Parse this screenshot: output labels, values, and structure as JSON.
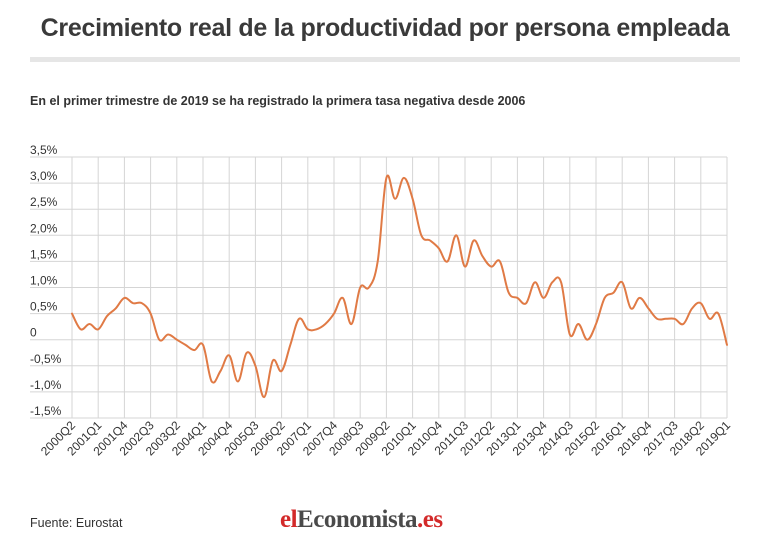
{
  "header": {
    "title": "Crecimiento real de la productividad por persona empleada",
    "subtitle": "En el primer trimestre de 2019 se ha registrado la primera tasa negativa desde 2006"
  },
  "footer": {
    "source": "Fuente: Eurostat",
    "logo_part1": "el",
    "logo_part2": "Economista",
    "logo_part3": ".es"
  },
  "colors": {
    "line": "#e07a45",
    "grid": "#d5d5d5",
    "text": "#333333"
  },
  "chart_data": {
    "type": "line",
    "title": "Crecimiento real de la productividad por persona empleada",
    "xlabel": "",
    "ylabel": "",
    "ylim": [
      -1.5,
      3.5
    ],
    "yticks": [
      {
        "value": 3.5,
        "label": "3,5%"
      },
      {
        "value": 3.0,
        "label": "3,0%"
      },
      {
        "value": 2.5,
        "label": "2,5%"
      },
      {
        "value": 2.0,
        "label": "2,0%"
      },
      {
        "value": 1.5,
        "label": "1,5%"
      },
      {
        "value": 1.0,
        "label": "1,0%"
      },
      {
        "value": 0.5,
        "label": "0,5%"
      },
      {
        "value": 0.0,
        "label": "0"
      },
      {
        "value": -0.5,
        "label": "-0,5%"
      },
      {
        "value": -1.0,
        "label": "-1,0%"
      },
      {
        "value": -1.5,
        "label": "-1,5%"
      }
    ],
    "grid": true,
    "xticks": [
      "2000Q2",
      "2001Q1",
      "2001Q4",
      "2002Q3",
      "2003Q2",
      "2004Q1",
      "2004Q4",
      "2005Q3",
      "2006Q2",
      "2007Q1",
      "2007Q4",
      "2008Q3",
      "2009Q2",
      "2010Q1",
      "2010Q4",
      "2011Q3",
      "2012Q2",
      "2013Q1",
      "2013Q4",
      "2014Q3",
      "2015Q2",
      "2016Q1",
      "2016Q4",
      "2017Q3",
      "2018Q2",
      "2019Q1"
    ],
    "categories": [
      "2000Q2",
      "2000Q3",
      "2000Q4",
      "2001Q1",
      "2001Q2",
      "2001Q3",
      "2001Q4",
      "2002Q1",
      "2002Q2",
      "2002Q3",
      "2002Q4",
      "2003Q1",
      "2003Q2",
      "2003Q3",
      "2003Q4",
      "2004Q1",
      "2004Q2",
      "2004Q3",
      "2004Q4",
      "2005Q1",
      "2005Q2",
      "2005Q3",
      "2005Q4",
      "2006Q1",
      "2006Q2",
      "2006Q3",
      "2006Q4",
      "2007Q1",
      "2007Q2",
      "2007Q3",
      "2007Q4",
      "2008Q1",
      "2008Q2",
      "2008Q3",
      "2008Q4",
      "2009Q1",
      "2009Q2",
      "2009Q3",
      "2009Q4",
      "2010Q1",
      "2010Q2",
      "2010Q3",
      "2010Q4",
      "2011Q1",
      "2011Q2",
      "2011Q3",
      "2011Q4",
      "2012Q1",
      "2012Q2",
      "2012Q3",
      "2012Q4",
      "2013Q1",
      "2013Q2",
      "2013Q3",
      "2013Q4",
      "2014Q1",
      "2014Q2",
      "2014Q3",
      "2014Q4",
      "2015Q1",
      "2015Q2",
      "2015Q3",
      "2015Q4",
      "2016Q1",
      "2016Q2",
      "2016Q3",
      "2016Q4",
      "2017Q1",
      "2017Q2",
      "2017Q3",
      "2017Q4",
      "2018Q1",
      "2018Q2",
      "2018Q3",
      "2018Q4",
      "2019Q1"
    ],
    "series": [
      {
        "values": [
          0.5,
          0.2,
          0.3,
          0.2,
          0.45,
          0.6,
          0.8,
          0.7,
          0.7,
          0.5,
          0.0,
          0.1,
          0.0,
          -0.1,
          -0.2,
          -0.1,
          -0.8,
          -0.6,
          -0.3,
          -0.8,
          -0.25,
          -0.5,
          -1.1,
          -0.4,
          -0.6,
          -0.1,
          0.4,
          0.2,
          0.2,
          0.3,
          0.5,
          0.8,
          0.3,
          1.0,
          1.0,
          1.5,
          3.1,
          2.7,
          3.1,
          2.7,
          2.0,
          1.9,
          1.75,
          1.5,
          2.0,
          1.4,
          1.9,
          1.6,
          1.4,
          1.5,
          0.9,
          0.8,
          0.7,
          1.1,
          0.8,
          1.1,
          1.1,
          0.1,
          0.3,
          0.0,
          0.3,
          0.8,
          0.9,
          1.1,
          0.6,
          0.8,
          0.6,
          0.4,
          0.4,
          0.4,
          0.3,
          0.6,
          0.7,
          0.4,
          0.5,
          -0.1
        ]
      }
    ]
  }
}
